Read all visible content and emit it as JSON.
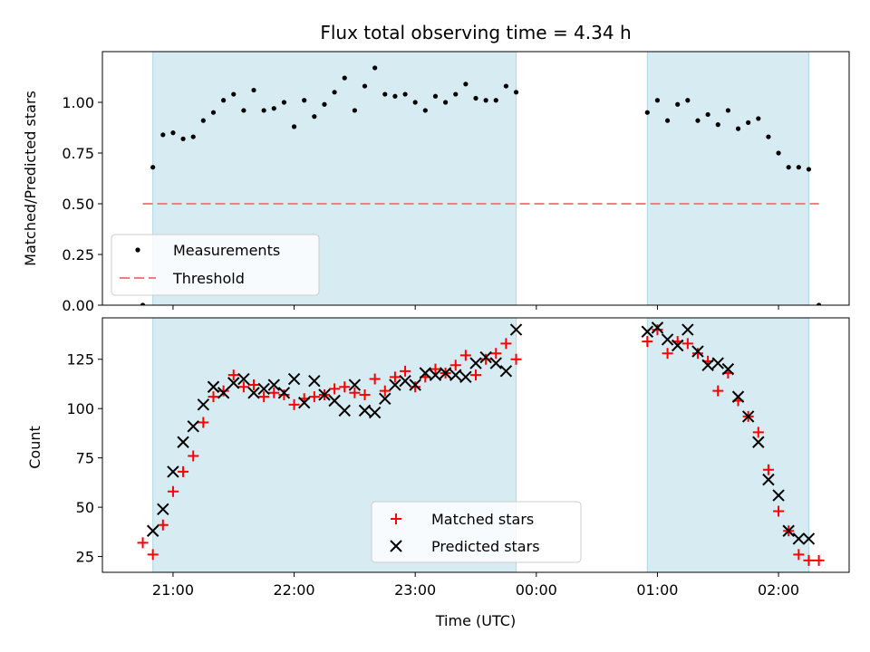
{
  "figure": {
    "title": "Flux total observing time = 4.34 h",
    "xlabel": "Time (UTC)"
  },
  "colors": {
    "shade": "#add8e6",
    "measurements": "#000000",
    "threshold": "#f08080",
    "matched": "#ff0000",
    "predicted": "#000000"
  },
  "chart_data": [
    {
      "type": "scatter",
      "ylabel": "Matched/Predicted stars",
      "xlim": [
        "20:25",
        "02:35"
      ],
      "ylim": [
        0,
        1.25
      ],
      "yticks": [
        0.0,
        0.25,
        0.5,
        0.75,
        1.0
      ],
      "ytick_labels": [
        "0.00",
        "0.25",
        "0.50",
        "0.75",
        "1.00"
      ],
      "xticks": [
        "21:00",
        "22:00",
        "23:00",
        "00:00",
        "01:00",
        "02:00"
      ],
      "tick_labels_visible": false,
      "shaded_intervals": [
        [
          "20:50",
          "23:50"
        ],
        [
          "00:55",
          "02:15"
        ]
      ],
      "threshold": {
        "name": "Threshold",
        "y": 0.5,
        "x_range": [
          "20:45",
          "02:20"
        ]
      },
      "legend": {
        "position": "lower-left",
        "entries": [
          "Measurements",
          "Threshold"
        ]
      },
      "series": [
        {
          "name": "Measurements",
          "marker": "point",
          "x": [
            "20:45",
            "20:50",
            "20:55",
            "21:00",
            "21:05",
            "21:10",
            "21:15",
            "21:20",
            "21:25",
            "21:30",
            "21:35",
            "21:40",
            "21:45",
            "21:50",
            "21:55",
            "22:00",
            "22:05",
            "22:10",
            "22:15",
            "22:20",
            "22:25",
            "22:30",
            "22:35",
            "22:40",
            "22:45",
            "22:50",
            "22:55",
            "23:00",
            "23:05",
            "23:10",
            "23:15",
            "23:20",
            "23:25",
            "23:30",
            "23:35",
            "23:40",
            "23:45",
            "23:50",
            "00:55",
            "01:00",
            "01:05",
            "01:10",
            "01:15",
            "01:20",
            "01:25",
            "01:30",
            "01:35",
            "01:40",
            "01:45",
            "01:50",
            "01:55",
            "02:00",
            "02:05",
            "02:10",
            "02:15",
            "02:20"
          ],
          "y": [
            0.0,
            0.68,
            0.84,
            0.85,
            0.82,
            0.83,
            0.91,
            0.95,
            1.01,
            1.04,
            0.96,
            1.06,
            0.96,
            0.97,
            1.0,
            0.88,
            1.01,
            0.93,
            0.99,
            1.05,
            1.12,
            0.96,
            1.08,
            1.17,
            1.04,
            1.03,
            1.04,
            1.0,
            0.96,
            1.03,
            1.0,
            1.04,
            1.09,
            1.02,
            1.01,
            1.01,
            1.08,
            1.05,
            0.95,
            1.01,
            0.91,
            0.99,
            1.01,
            0.91,
            0.94,
            0.89,
            0.96,
            0.87,
            0.9,
            0.92,
            0.83,
            0.75,
            0.68,
            0.68,
            0.67,
            0.0
          ]
        }
      ]
    },
    {
      "type": "scatter",
      "ylabel": "Count",
      "xlim": [
        "20:25",
        "02:35"
      ],
      "ylim": [
        17,
        146
      ],
      "yticks": [
        25,
        50,
        75,
        100,
        125
      ],
      "ytick_labels": [
        "25",
        "50",
        "75",
        "100",
        "125"
      ],
      "xticks": [
        "21:00",
        "22:00",
        "23:00",
        "00:00",
        "01:00",
        "02:00"
      ],
      "xtick_labels": [
        "21:00",
        "22:00",
        "23:00",
        "00:00",
        "01:00",
        "02:00"
      ],
      "shaded_intervals": [
        [
          "20:50",
          "23:50"
        ],
        [
          "00:55",
          "02:15"
        ]
      ],
      "legend": {
        "position": "lower-center",
        "entries": [
          "Matched stars",
          "Predicted stars"
        ]
      },
      "series": [
        {
          "name": "Matched stars",
          "marker": "plus",
          "x": [
            "20:45",
            "20:50",
            "20:55",
            "21:00",
            "21:05",
            "21:10",
            "21:15",
            "21:20",
            "21:25",
            "21:30",
            "21:35",
            "21:40",
            "21:45",
            "21:50",
            "21:55",
            "22:00",
            "22:05",
            "22:10",
            "22:15",
            "22:20",
            "22:25",
            "22:30",
            "22:35",
            "22:40",
            "22:45",
            "22:50",
            "22:55",
            "23:00",
            "23:05",
            "23:10",
            "23:15",
            "23:20",
            "23:25",
            "23:30",
            "23:35",
            "23:40",
            "23:45",
            "23:50",
            "00:55",
            "01:00",
            "01:05",
            "01:10",
            "01:15",
            "01:20",
            "01:25",
            "01:30",
            "01:35",
            "01:40",
            "01:45",
            "01:50",
            "01:55",
            "02:00",
            "02:05",
            "02:10",
            "02:15",
            "02:20"
          ],
          "y": [
            32,
            26,
            41,
            58,
            68,
            76,
            93,
            106,
            109,
            117,
            111,
            112,
            106,
            108,
            107,
            102,
            105,
            106,
            107,
            110,
            111,
            108,
            107,
            115,
            109,
            116,
            119,
            111,
            116,
            120,
            118,
            122,
            127,
            117,
            125,
            128,
            133,
            125,
            134,
            140,
            128,
            134,
            133,
            128,
            124,
            109,
            118,
            104,
            96,
            88,
            69,
            48,
            38,
            26,
            23,
            23
          ]
        },
        {
          "name": "Predicted stars",
          "marker": "x",
          "x": [
            "20:50",
            "20:55",
            "21:00",
            "21:05",
            "21:10",
            "21:15",
            "21:20",
            "21:25",
            "21:30",
            "21:35",
            "21:40",
            "21:45",
            "21:50",
            "21:55",
            "22:00",
            "22:05",
            "22:10",
            "22:15",
            "22:20",
            "22:25",
            "22:30",
            "22:35",
            "22:40",
            "22:45",
            "22:50",
            "22:55",
            "23:00",
            "23:05",
            "23:10",
            "23:15",
            "23:20",
            "23:25",
            "23:30",
            "23:35",
            "23:40",
            "23:45",
            "23:50",
            "00:55",
            "01:00",
            "01:05",
            "01:10",
            "01:15",
            "01:20",
            "01:25",
            "01:30",
            "01:35",
            "01:40",
            "01:45",
            "01:50",
            "01:55",
            "02:00",
            "02:05",
            "02:10",
            "02:15"
          ],
          "y": [
            38,
            49,
            68,
            83,
            91,
            102,
            111,
            108,
            113,
            115,
            108,
            110,
            112,
            108,
            115,
            103,
            114,
            107,
            104,
            99,
            112,
            99,
            98,
            105,
            112,
            114,
            112,
            118,
            117,
            118,
            117,
            116,
            123,
            126,
            123,
            119,
            140,
            139,
            141,
            135,
            132,
            140,
            129,
            122,
            123,
            120,
            106,
            96,
            83,
            64,
            56,
            38,
            34,
            34
          ]
        }
      ]
    }
  ]
}
